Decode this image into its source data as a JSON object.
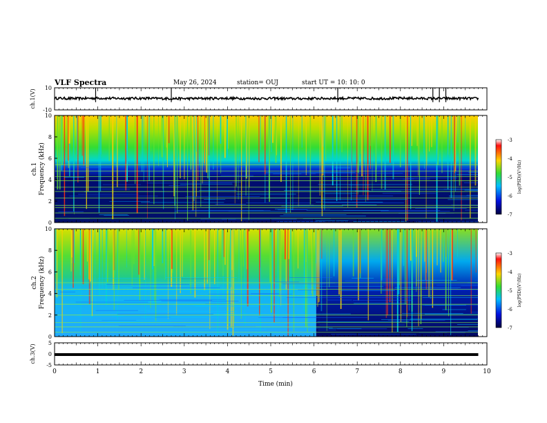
{
  "header": {
    "title": "VLF Spectra",
    "date": "May 26, 2024",
    "station": "station= OUJ",
    "start": "start  UT =   10: 10: 0"
  },
  "chart_data": [
    {
      "type": "line",
      "panel": "ch1-waveform",
      "ylabel": "ch.1(V)",
      "ylim": [
        -10,
        10
      ],
      "yticks": [
        "10",
        "-10"
      ],
      "x": [
        0,
        0.5,
        1.0,
        1.5,
        2.0,
        2.5,
        3.0,
        3.5,
        4.0,
        4.5,
        5.0,
        5.5,
        6.0,
        6.5,
        7.0,
        7.5,
        8.0,
        8.5,
        9.0,
        9.5,
        9.8
      ],
      "y": [
        0.5,
        0.3,
        0.6,
        0.4,
        0.5,
        0.3,
        0.2,
        0.4,
        0.5,
        0.3,
        0.4,
        0.2,
        0.3,
        0.5,
        0.4,
        0.3,
        0.5,
        0.4,
        0.3,
        0.4,
        0.3
      ],
      "spikes_at_min": [
        0.95,
        2.7,
        6.55,
        8.75,
        8.9,
        9.05
      ],
      "grid": false
    },
    {
      "type": "heatmap",
      "panel": "ch1-spectrogram",
      "ylabel": "Frequency (kHz)",
      "channel_label": "ch.1",
      "ylim": [
        0,
        10
      ],
      "yticks": [
        "0",
        "2",
        "4",
        "6",
        "8",
        "10"
      ],
      "colorbar": {
        "label": "log(PSD)(V²/Hz)",
        "ticks": [
          "-3",
          "-4",
          "-5",
          "-6",
          "-7"
        ],
        "range": [
          -7,
          -3
        ]
      },
      "description_level_upper_band": "green to yellow above ~5 kHz",
      "line_frequencies_khz": [
        0.4,
        0.9,
        1.4,
        1.6,
        2.3,
        2.9,
        3.3,
        3.9,
        4.3,
        4.8,
        5.4
      ]
    },
    {
      "type": "heatmap",
      "panel": "ch2-spectrogram",
      "ylabel": "Frequency (kHz)",
      "channel_label": "ch.2",
      "ylim": [
        0,
        10
      ],
      "yticks": [
        "0",
        "2",
        "4",
        "6",
        "8",
        "10"
      ],
      "colorbar": {
        "label": "log(PSD)(V²/Hz)",
        "ticks": [
          "-3",
          "-4",
          "-5",
          "-6",
          "-7"
        ],
        "range": [
          -7,
          -3
        ]
      },
      "change_at_min": 6.05
    },
    {
      "type": "line",
      "panel": "ch3-waveform",
      "ylabel": "ch.3(V)",
      "ylim": [
        -5,
        5
      ],
      "yticks": [
        "5",
        "0",
        "-5"
      ],
      "x": [
        0,
        9.8
      ],
      "y": [
        -0.3,
        -0.3
      ],
      "grid": false
    }
  ],
  "xaxis": {
    "label": "Time  (min)",
    "ticks": [
      "0",
      "1",
      "2",
      "3",
      "4",
      "5",
      "6",
      "7",
      "8",
      "9",
      "10"
    ],
    "xlim": [
      0,
      10
    ]
  },
  "colors": {
    "low": "#00007a",
    "mid": "#00bfff",
    "green": "#33dd33",
    "high": "#ffd500",
    "peak": "#ff2000"
  }
}
